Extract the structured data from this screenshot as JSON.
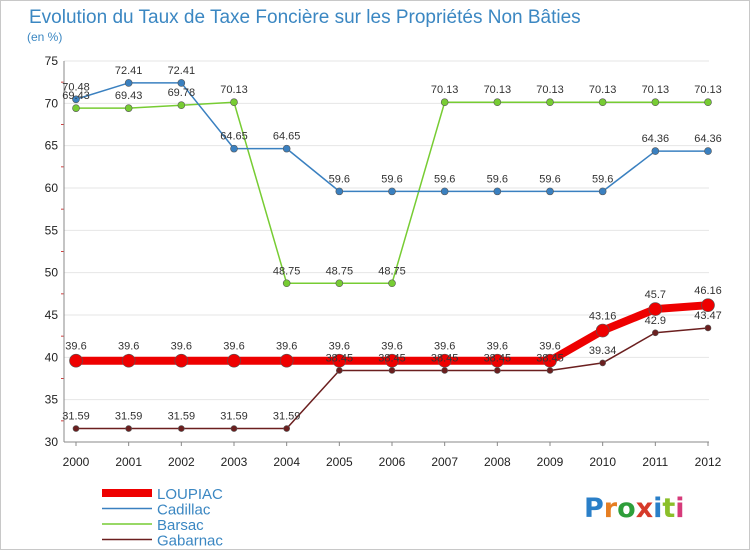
{
  "chart_data": {
    "type": "line",
    "title": "Evolution du Taux de Taxe Foncière sur les Propriétés Non Bâties",
    "subtitle": "(en %)",
    "xlabel": "",
    "ylabel": "",
    "ylim": [
      30,
      75
    ],
    "yticks": [
      30,
      35,
      40,
      45,
      50,
      55,
      60,
      65,
      70,
      75
    ],
    "grid": true,
    "legend_position": "bottom-left",
    "categories": [
      "2000",
      "2001",
      "2002",
      "2003",
      "2004",
      "2005",
      "2006",
      "2007",
      "2008",
      "2009",
      "2010",
      "2011",
      "2012"
    ],
    "series": [
      {
        "name": "LOUPIAC",
        "color": "#ee0000",
        "values": [
          39.6,
          39.6,
          39.6,
          39.6,
          39.6,
          39.6,
          39.6,
          39.6,
          39.6,
          39.6,
          43.16,
          45.7,
          46.16
        ]
      },
      {
        "name": "Cadillac",
        "color": "#3a80c0",
        "values": [
          70.48,
          72.41,
          72.41,
          64.65,
          64.65,
          59.6,
          59.6,
          59.6,
          59.6,
          59.6,
          59.6,
          64.36,
          64.36
        ]
      },
      {
        "name": "Barsac",
        "color": "#77cc33",
        "values": [
          69.43,
          69.43,
          69.78,
          70.13,
          48.75,
          48.75,
          48.75,
          70.13,
          70.13,
          70.13,
          70.13,
          70.13,
          70.13
        ]
      },
      {
        "name": "Gabarnac",
        "color": "#6b1f1f",
        "values": [
          31.59,
          31.59,
          31.59,
          31.59,
          31.59,
          38.45,
          38.45,
          38.45,
          38.45,
          38.45,
          39.34,
          42.9,
          43.47
        ]
      }
    ]
  },
  "logo": {
    "letters": [
      "P",
      "r",
      "o",
      "x",
      "i",
      "t",
      "i"
    ],
    "colors": [
      "#2a7fc8",
      "#e67e22",
      "#2e9e3a",
      "#d63a2a",
      "#2a7fc8",
      "#8bbf2a",
      "#d63a7a"
    ]
  }
}
